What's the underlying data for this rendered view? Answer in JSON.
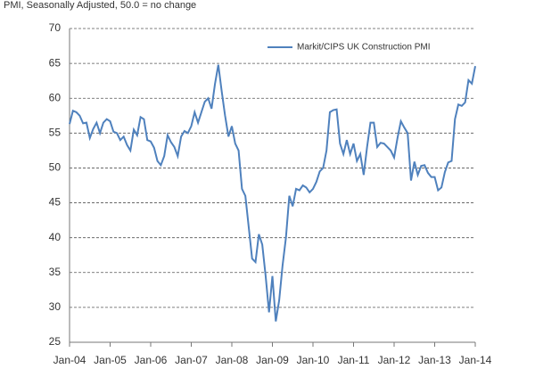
{
  "chart_data": {
    "type": "line",
    "subtitle": "PMI, Seasonally Adjusted, 50.0 = no change",
    "categories": [
      "Jan-04",
      null,
      null,
      null,
      null,
      null,
      null,
      null,
      null,
      null,
      null,
      null,
      "Jan-05",
      null,
      null,
      null,
      null,
      null,
      null,
      null,
      null,
      null,
      null,
      null,
      "Jan-06",
      null,
      null,
      null,
      null,
      null,
      null,
      null,
      null,
      null,
      null,
      null,
      "Jan-07",
      null,
      null,
      null,
      null,
      null,
      null,
      null,
      null,
      null,
      null,
      null,
      "Jan-08",
      null,
      null,
      null,
      null,
      null,
      null,
      null,
      null,
      null,
      null,
      null,
      "Jan-09",
      null,
      null,
      null,
      null,
      null,
      null,
      null,
      null,
      null,
      null,
      null,
      "Jan-10",
      null,
      null,
      null,
      null,
      null,
      null,
      null,
      null,
      null,
      null,
      null,
      "Jan-11",
      null,
      null,
      null,
      null,
      null,
      null,
      null,
      null,
      null,
      null,
      null,
      "Jan-12",
      null,
      null,
      null,
      null,
      null,
      null,
      null,
      null,
      null,
      null,
      null,
      "Jan-13",
      null,
      null,
      null,
      null,
      null,
      null,
      null,
      null,
      null,
      null,
      null,
      "Jan-14"
    ],
    "series": [
      {
        "name": "Markit/CIPS UK Construction PMI",
        "color": "#4f81bd",
        "values": [
          56.3,
          58.2,
          58.0,
          57.5,
          56.4,
          56.5,
          54.3,
          55.6,
          56.5,
          55.0,
          56.5,
          57.0,
          56.7,
          55.2,
          55.0,
          54.0,
          54.5,
          53.3,
          52.5,
          55.5,
          54.7,
          57.3,
          57.0,
          54.0,
          53.8,
          52.9,
          51.0,
          50.4,
          51.7,
          54.7,
          53.7,
          53.0,
          51.7,
          54.5,
          55.3,
          55.0,
          56.0,
          58.0,
          56.5,
          58.0,
          59.5,
          60.0,
          58.5,
          62.0,
          64.8,
          61.0,
          57.5,
          54.5,
          56.0,
          53.5,
          52.5,
          47.0,
          46.0,
          41.5,
          37.0,
          36.5,
          40.5,
          39.0,
          34.5,
          29.3,
          34.5,
          28.0,
          31.0,
          36.0,
          40.0,
          46.0,
          44.5,
          47.0,
          46.8,
          47.5,
          47.2,
          46.5,
          47.0,
          48.0,
          49.5,
          50.0,
          52.5,
          58.0,
          58.3,
          58.4,
          53.5,
          52.0,
          54.0,
          52.0,
          53.5,
          51.0,
          52.0,
          49.0,
          53.0,
          56.5,
          56.5,
          53.0,
          53.6,
          53.5,
          53.0,
          52.5,
          51.5,
          54.3,
          56.7,
          55.8,
          55.0,
          48.2,
          50.9,
          49.0,
          50.3,
          50.4,
          49.3,
          48.7,
          48.7,
          46.8,
          47.2,
          49.4,
          50.8,
          51.0,
          57.0,
          59.1,
          58.9,
          59.4,
          62.6,
          62.1,
          64.6
        ]
      }
    ],
    "ylim": [
      25,
      70
    ],
    "yticks": [
      25,
      30,
      35,
      40,
      45,
      50,
      55,
      60,
      65,
      70
    ],
    "grid": true,
    "legend": "top-right"
  }
}
